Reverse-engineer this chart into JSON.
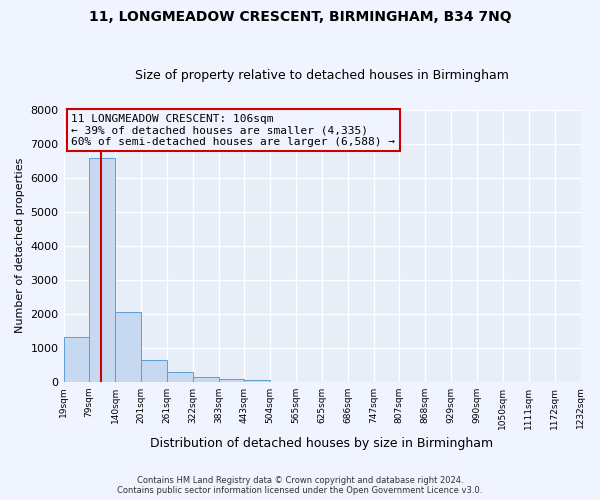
{
  "title": "11, LONGMEADOW CRESCENT, BIRMINGHAM, B34 7NQ",
  "subtitle": "Size of property relative to detached houses in Birmingham",
  "xlabel": "Distribution of detached houses by size in Birmingham",
  "ylabel": "Number of detached properties",
  "bin_edges": [
    19,
    79,
    140,
    201,
    261,
    322,
    383,
    443,
    504,
    565,
    625,
    686,
    747,
    807,
    868,
    929,
    990,
    1050,
    1111,
    1172,
    1232
  ],
  "bin_labels": [
    "19sqm",
    "79sqm",
    "140sqm",
    "201sqm",
    "261sqm",
    "322sqm",
    "383sqm",
    "443sqm",
    "504sqm",
    "565sqm",
    "625sqm",
    "686sqm",
    "747sqm",
    "807sqm",
    "868sqm",
    "929sqm",
    "990sqm",
    "1050sqm",
    "1111sqm",
    "1172sqm",
    "1232sqm"
  ],
  "bar_heights": [
    1300,
    6580,
    2060,
    640,
    290,
    140,
    85,
    60,
    0,
    0,
    0,
    0,
    0,
    0,
    0,
    0,
    0,
    0,
    0,
    0
  ],
  "bar_color": "#c6d9f0",
  "bar_edge_color": "#5a9fd4",
  "ylim": [
    0,
    8000
  ],
  "yticks": [
    0,
    1000,
    2000,
    3000,
    4000,
    5000,
    6000,
    7000,
    8000
  ],
  "property_size_label": "11 LONGMEADOW CRESCENT: 106sqm",
  "annotation_line1": "← 39% of detached houses are smaller (4,335)",
  "annotation_line2": "60% of semi-detached houses are larger (6,588) →",
  "vline_x": 106,
  "vline_color": "#cc0000",
  "annotation_box_edge": "#cc0000",
  "footnote1": "Contains HM Land Registry data © Crown copyright and database right 2024.",
  "footnote2": "Contains public sector information licensed under the Open Government Licence v3.0.",
  "bg_color": "#f0f4ff",
  "plot_bg_color": "#e8eef8",
  "grid_color": "#ffffff",
  "title_fontsize": 10,
  "subtitle_fontsize": 9
}
